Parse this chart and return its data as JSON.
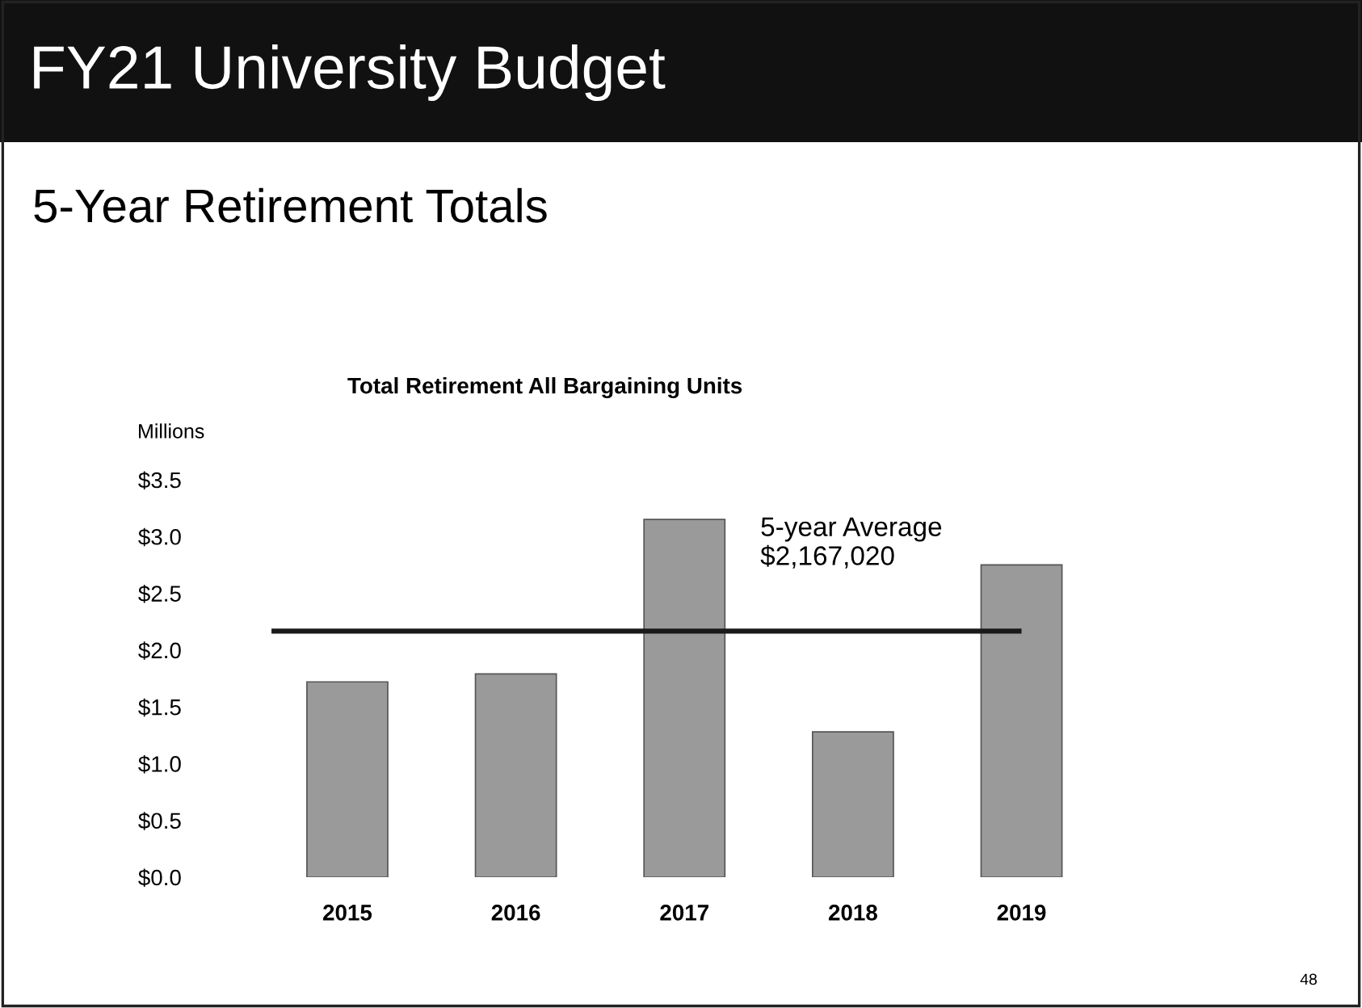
{
  "chart_data": {
    "type": "bar",
    "title": "FY21 University Budget",
    "subtitle": "5-Year Retirement Totals",
    "ylabel": "Millions",
    "annotations": [
      "Total Retirement All Bargaining Units",
      "48"
    ],
    "categories": [
      "2015",
      "2016",
      "2017",
      "2018",
      "2019"
    ],
    "values": [
      1.72,
      1.79,
      3.15,
      1.28,
      2.75
    ],
    "color": "#9a9a9a",
    "ylim": [
      0,
      3.5
    ],
    "yticks": [
      {
        "value": 0,
        "label": "$0.0"
      },
      {
        "value": 0.5,
        "label": "$0.5"
      },
      {
        "value": 1,
        "label": "$1.0"
      },
      {
        "value": 1.5,
        "label": "$1.5"
      },
      {
        "value": 2,
        "label": "$2.0"
      },
      {
        "value": 2.5,
        "label": "$2.5"
      },
      {
        "value": 3,
        "label": "$3.0"
      },
      {
        "value": 3.5,
        "label": "$3.5"
      }
    ],
    "ref_lines": [
      {
        "axis": "y",
        "value": 2.16702,
        "label": "5-year Average\n$2,167,020",
        "color": "#1a1a1a"
      }
    ],
    "grid": false,
    "legend": false
  }
}
